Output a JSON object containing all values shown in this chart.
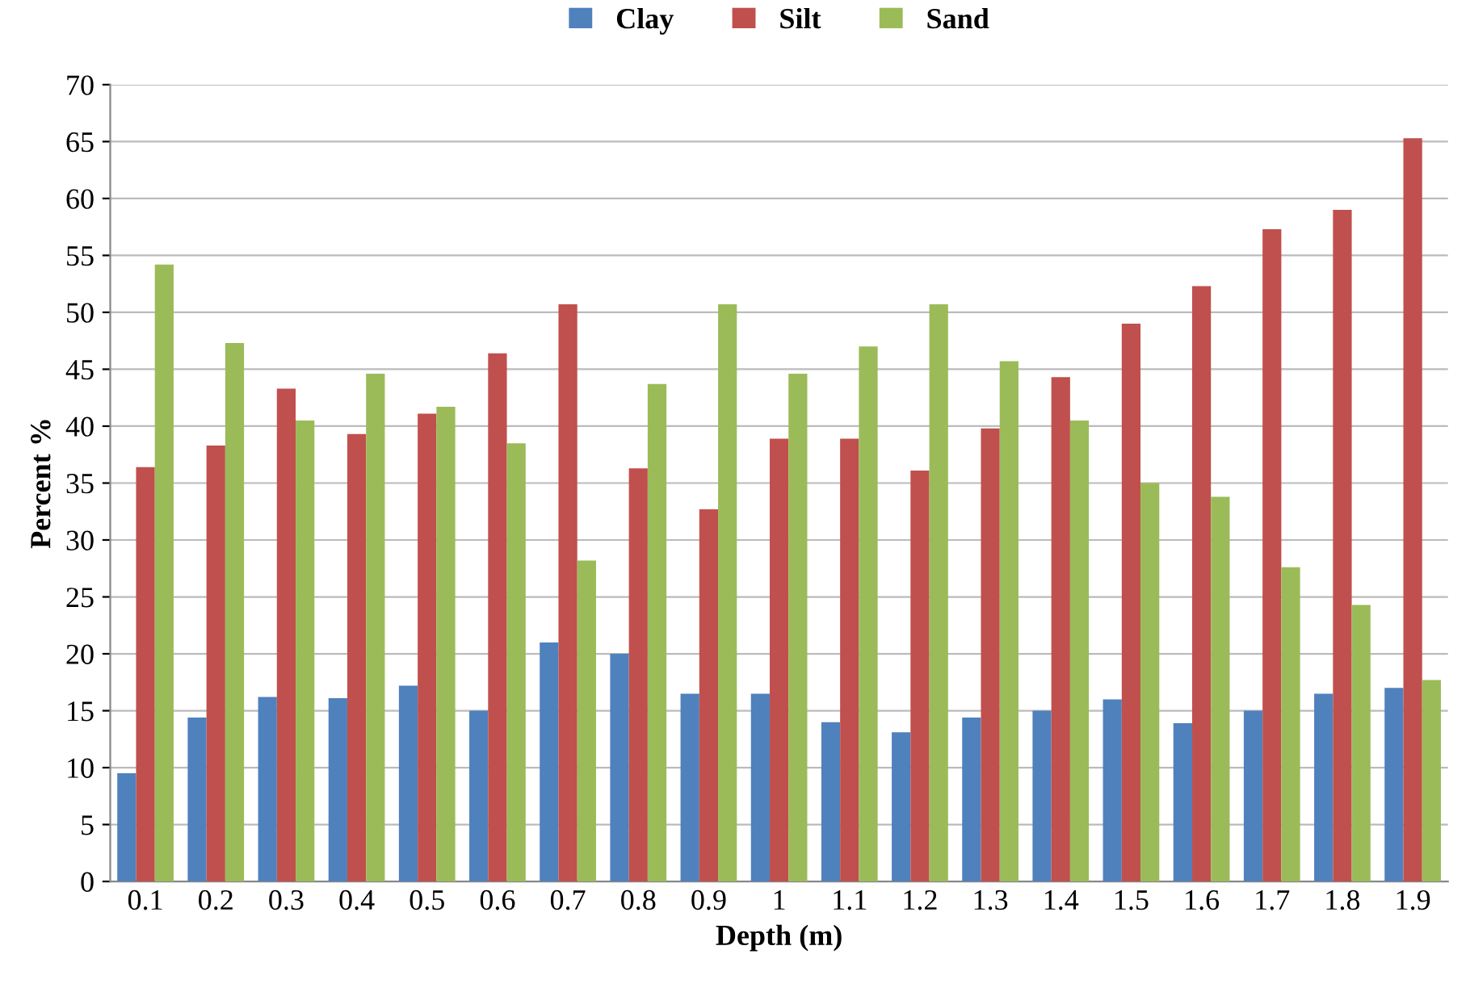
{
  "chart_data": {
    "type": "bar",
    "xlabel": "Depth (m)",
    "ylabel": "Percent %",
    "categories": [
      "0.1",
      "0.2",
      "0.3",
      "0.4",
      "0.5",
      "0.6",
      "0.7",
      "0.8",
      "0.9",
      "1",
      "1.1",
      "1.2",
      "1.3",
      "1.4",
      "1.5",
      "1.6",
      "1.7",
      "1.8",
      "1.9"
    ],
    "series": [
      {
        "name": "Clay",
        "color": "#4f81bd",
        "values": [
          9.5,
          14.4,
          16.2,
          16.1,
          17.2,
          15.0,
          21.0,
          20.0,
          16.5,
          16.5,
          14.0,
          13.1,
          14.4,
          15.0,
          16.0,
          13.9,
          15.0,
          16.5,
          17.0
        ]
      },
      {
        "name": "Silt",
        "color": "#c0504d",
        "values": [
          36.4,
          38.3,
          43.3,
          39.3,
          41.1,
          46.4,
          50.7,
          36.3,
          32.7,
          38.9,
          38.9,
          36.1,
          39.8,
          44.3,
          49.0,
          52.3,
          57.3,
          59.0,
          65.3
        ]
      },
      {
        "name": "Sand",
        "color": "#9bbb59",
        "values": [
          54.2,
          47.3,
          40.5,
          44.6,
          41.7,
          38.5,
          28.2,
          43.7,
          50.7,
          44.6,
          47.0,
          50.7,
          45.7,
          40.5,
          35.0,
          33.8,
          27.6,
          24.3,
          17.7
        ]
      }
    ],
    "ylim": [
      0,
      70
    ],
    "yticks": [
      0,
      5,
      10,
      15,
      20,
      25,
      30,
      35,
      40,
      45,
      50,
      55,
      60,
      65,
      70
    ],
    "grid": "y",
    "legend": "top"
  }
}
